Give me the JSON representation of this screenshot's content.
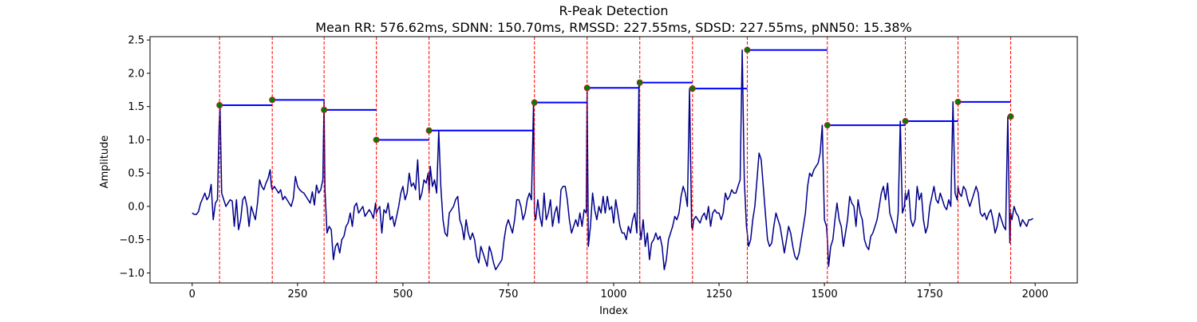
{
  "chart_data": {
    "type": "line",
    "title": "R-Peak Detection",
    "subtitle": "Mean RR: 576.62ms, SDNN: 150.70ms, RMSSD: 227.55ms, SDSD: 227.55ms, pNN50: 15.38%",
    "xlabel": "Index",
    "ylabel": "Amplitude",
    "xlim": [
      -100,
      2100
    ],
    "ylim": [
      -1.15,
      2.55
    ],
    "xticks": [
      0,
      250,
      500,
      750,
      1000,
      1250,
      1500,
      1750,
      2000
    ],
    "xtick_labels": [
      "0",
      "250",
      "500",
      "750",
      "1000",
      "1250",
      "1500",
      "1750",
      "2000"
    ],
    "yticks": [
      -1.0,
      -0.5,
      0.0,
      0.5,
      1.0,
      1.5,
      2.0,
      2.5
    ],
    "ytick_labels": [
      "−1.0",
      "−0.5",
      "0.0",
      "0.5",
      "1.0",
      "1.5",
      "2.0",
      "2.5"
    ],
    "grid": false,
    "colors": {
      "signal": "#00008b",
      "peak_lines": "#ff0000",
      "rr_segments": "#0000ff",
      "peak_markers": "#008000",
      "peak_marker_edge": "#b22222"
    },
    "signal_x": [
      0,
      5,
      10,
      15,
      20,
      25,
      30,
      35,
      40,
      45,
      50,
      55,
      60,
      64,
      66,
      70,
      75,
      80,
      85,
      90,
      95,
      100,
      105,
      110,
      115,
      120,
      125,
      130,
      135,
      140,
      145,
      150,
      155,
      160,
      165,
      170,
      175,
      180,
      185,
      188,
      190,
      195,
      200,
      205,
      210,
      215,
      220,
      225,
      230,
      235,
      240,
      245,
      250,
      255,
      260,
      265,
      270,
      275,
      280,
      285,
      290,
      295,
      300,
      305,
      310,
      313,
      315,
      320,
      325,
      330,
      335,
      340,
      345,
      350,
      355,
      360,
      365,
      370,
      375,
      380,
      385,
      390,
      395,
      400,
      405,
      410,
      415,
      420,
      425,
      430,
      435,
      437,
      440,
      445,
      450,
      455,
      460,
      465,
      470,
      475,
      480,
      485,
      490,
      495,
      500,
      505,
      510,
      515,
      520,
      525,
      530,
      535,
      540,
      545,
      550,
      555,
      560,
      562,
      565,
      570,
      575,
      580,
      585,
      590,
      595,
      600,
      605,
      610,
      615,
      620,
      625,
      630,
      635,
      640,
      645,
      650,
      655,
      660,
      665,
      670,
      675,
      680,
      685,
      690,
      695,
      700,
      705,
      710,
      715,
      720,
      725,
      730,
      735,
      740,
      745,
      750,
      755,
      760,
      765,
      770,
      775,
      780,
      785,
      790,
      795,
      800,
      805,
      810,
      812,
      815,
      820,
      825,
      830,
      835,
      840,
      845,
      850,
      855,
      860,
      865,
      870,
      875,
      880,
      885,
      890,
      895,
      900,
      905,
      910,
      915,
      920,
      925,
      930,
      935,
      937,
      940,
      945,
      950,
      955,
      960,
      965,
      970,
      975,
      980,
      985,
      990,
      995,
      1000,
      1005,
      1010,
      1015,
      1020,
      1025,
      1030,
      1035,
      1040,
      1045,
      1050,
      1055,
      1060,
      1062,
      1065,
      1070,
      1075,
      1080,
      1085,
      1090,
      1095,
      1100,
      1105,
      1110,
      1115,
      1120,
      1125,
      1130,
      1135,
      1140,
      1145,
      1150,
      1155,
      1160,
      1165,
      1170,
      1175,
      1180,
      1185,
      1187,
      1190,
      1195,
      1200,
      1205,
      1210,
      1215,
      1220,
      1225,
      1230,
      1235,
      1240,
      1245,
      1250,
      1255,
      1260,
      1265,
      1270,
      1275,
      1280,
      1285,
      1290,
      1295,
      1300,
      1305,
      1310,
      1315,
      1317,
      1320,
      1325,
      1330,
      1335,
      1340,
      1345,
      1350,
      1355,
      1360,
      1365,
      1370,
      1375,
      1380,
      1385,
      1390,
      1395,
      1400,
      1405,
      1410,
      1415,
      1420,
      1425,
      1430,
      1435,
      1440,
      1445,
      1450,
      1455,
      1460,
      1465,
      1470,
      1475,
      1480,
      1485,
      1490,
      1495,
      1500,
      1505,
      1507,
      1510,
      1515,
      1520,
      1525,
      1530,
      1535,
      1540,
      1545,
      1550,
      1555,
      1560,
      1565,
      1570,
      1575,
      1580,
      1585,
      1590,
      1595,
      1600,
      1605,
      1610,
      1615,
      1620,
      1625,
      1630,
      1635,
      1640,
      1645,
      1650,
      1655,
      1660,
      1665,
      1670,
      1675,
      1680,
      1685,
      1690,
      1692,
      1695,
      1700,
      1705,
      1710,
      1715,
      1720,
      1725,
      1730,
      1735,
      1740,
      1745,
      1750,
      1755,
      1760,
      1765,
      1770,
      1775,
      1780,
      1785,
      1790,
      1795,
      1800,
      1805,
      1810,
      1815,
      1817,
      1820,
      1825,
      1830,
      1835,
      1840,
      1845,
      1850,
      1855,
      1860,
      1865,
      1870,
      1875,
      1880,
      1885,
      1890,
      1895,
      1900,
      1905,
      1910,
      1915,
      1920,
      1925,
      1930,
      1935,
      1940,
      1942,
      1945,
      1950,
      1955,
      1960,
      1965,
      1970,
      1975,
      1980,
      1985,
      1990,
      1995,
      2000
    ],
    "signal_y": [
      -0.1,
      -0.12,
      -0.12,
      -0.08,
      0.05,
      0.12,
      0.2,
      0.1,
      0.15,
      0.33,
      -0.2,
      0.05,
      0.1,
      1.2,
      1.52,
      0.2,
      0.1,
      0.0,
      0.05,
      0.1,
      0.08,
      -0.3,
      0.1,
      -0.35,
      -0.2,
      0.1,
      0.15,
      0.0,
      -0.3,
      0.0,
      -0.1,
      -0.2,
      0.05,
      0.4,
      0.3,
      0.25,
      0.35,
      0.42,
      0.55,
      0.3,
      0.25,
      0.3,
      0.25,
      0.2,
      0.25,
      0.1,
      0.15,
      0.1,
      0.05,
      0.0,
      0.12,
      0.45,
      0.3,
      0.25,
      0.22,
      0.2,
      0.15,
      0.1,
      0.05,
      0.22,
      0.02,
      0.32,
      0.2,
      0.25,
      0.4,
      1.6,
      0.25,
      -0.4,
      -0.3,
      -0.35,
      -0.8,
      -0.6,
      -0.55,
      -0.7,
      -0.5,
      -0.45,
      -0.3,
      -0.25,
      -0.1,
      -0.3,
      0.0,
      0.05,
      -0.1,
      -0.05,
      0.0,
      -0.15,
      -0.1,
      -0.05,
      -0.1,
      -0.18,
      0.05,
      -0.1,
      -0.05,
      0.0,
      -0.4,
      -0.05,
      -0.1,
      0.05,
      -0.2,
      -0.15,
      -0.3,
      -0.15,
      0.0,
      0.2,
      0.3,
      0.1,
      0.2,
      0.5,
      0.3,
      0.35,
      0.25,
      0.7,
      0.1,
      0.2,
      0.4,
      0.35,
      0.5,
      0.2,
      0.6,
      0.3,
      0.4,
      0.2,
      1.14,
      0.3,
      -0.2,
      -0.4,
      -0.45,
      -0.1,
      -0.05,
      0.0,
      0.1,
      0.15,
      -0.2,
      -0.3,
      -0.5,
      -0.2,
      -0.4,
      -0.5,
      -0.4,
      -0.5,
      -0.75,
      -0.85,
      -0.6,
      -0.7,
      -0.8,
      -0.9,
      -0.6,
      -0.7,
      -0.85,
      -0.95,
      -0.9,
      -0.85,
      -0.8,
      -0.5,
      -0.3,
      -0.2,
      -0.3,
      -0.4,
      -0.2,
      0.1,
      0.1,
      0.0,
      -0.2,
      -0.1,
      0.1,
      0.2,
      0.1,
      1.56,
      -0.1,
      -0.2,
      0.1,
      -0.15,
      -0.3,
      0.2,
      -0.2,
      -0.1,
      0.1,
      -0.3,
      -0.1,
      0.0,
      -0.25,
      0.25,
      0.3,
      0.3,
      0.1,
      -0.2,
      -0.4,
      -0.3,
      -0.2,
      -0.3,
      -0.1,
      -0.3,
      -0.05,
      -0.1,
      1.78,
      -0.6,
      -0.3,
      0.2,
      -0.05,
      -0.2,
      0.0,
      -0.1,
      0.15,
      -0.1,
      0.15,
      -0.05,
      0.0,
      -0.25,
      0.1,
      -0.1,
      -0.3,
      -0.4,
      -0.4,
      -0.5,
      -0.3,
      -0.4,
      -0.2,
      -0.1,
      -0.4,
      1.86,
      -0.3,
      -0.5,
      -0.2,
      -0.6,
      -0.4,
      -0.8,
      -0.55,
      -0.5,
      -0.4,
      -0.5,
      -0.45,
      -0.6,
      -0.95,
      -0.8,
      -0.5,
      -0.4,
      -0.3,
      -0.15,
      -0.2,
      -0.1,
      0.15,
      0.3,
      0.2,
      0.0,
      1.77,
      -0.3,
      -0.35,
      -0.2,
      -0.15,
      -0.2,
      -0.25,
      -0.15,
      -0.1,
      -0.2,
      0.0,
      -0.3,
      -0.1,
      -0.05,
      -0.1,
      -0.1,
      -0.2,
      -0.1,
      0.2,
      0.1,
      0.15,
      0.25,
      0.2,
      0.2,
      0.3,
      0.4,
      2.35,
      0.4,
      -0.3,
      -0.4,
      -0.6,
      -0.5,
      -0.2,
      0.0,
      0.4,
      0.8,
      0.7,
      0.3,
      -0.1,
      -0.5,
      -0.6,
      -0.55,
      -0.3,
      -0.1,
      -0.2,
      -0.3,
      -0.5,
      -0.7,
      -0.5,
      -0.3,
      -0.4,
      -0.6,
      -0.75,
      -0.8,
      -0.7,
      -0.5,
      -0.3,
      -0.1,
      0.3,
      0.5,
      0.45,
      0.55,
      0.6,
      0.65,
      0.8,
      1.22,
      -0.2,
      -0.3,
      -0.5,
      -0.9,
      -0.6,
      -0.5,
      -0.2,
      0.05,
      -0.2,
      -0.3,
      -0.6,
      -0.4,
      -0.2,
      0.15,
      0.05,
      0.0,
      -0.3,
      0.1,
      -0.1,
      -0.2,
      -0.5,
      -0.6,
      -0.65,
      -0.45,
      -0.4,
      -0.3,
      -0.2,
      0.0,
      0.2,
      0.3,
      0.1,
      0.35,
      -0.1,
      -0.2,
      -0.3,
      -0.4,
      -0.1,
      1.28,
      -0.1,
      0.0,
      0.2,
      0.1,
      0.25,
      -0.2,
      -0.3,
      -0.2,
      0.3,
      0.1,
      0.2,
      -0.2,
      -0.4,
      -0.3,
      0.0,
      0.15,
      0.3,
      0.1,
      0.05,
      0.2,
      0.1,
      0.0,
      -0.05,
      0.1,
      0.0,
      1.57,
      0.2,
      0.1,
      0.3,
      0.2,
      0.15,
      0.3,
      0.25,
      0.1,
      0.0,
      0.1,
      0.2,
      0.3,
      0.2,
      -0.1,
      -0.15,
      -0.1,
      -0.2,
      -0.1,
      -0.05,
      -0.2,
      -0.4,
      -0.3,
      -0.1,
      -0.2,
      -0.3,
      -0.35,
      1.35,
      -0.55,
      -0.1,
      -0.2,
      0.0,
      -0.1,
      -0.15,
      -0.3,
      -0.2,
      -0.25,
      -0.3,
      -0.2,
      -0.2,
      -0.18
    ],
    "r_peaks_x": [
      65,
      190,
      313,
      437,
      562,
      812,
      937,
      1062,
      1187,
      1317,
      1507,
      1692,
      1817,
      1942
    ],
    "r_peaks_y": [
      1.52,
      1.6,
      1.45,
      1.0,
      1.14,
      1.56,
      1.78,
      1.86,
      1.77,
      2.35,
      1.22,
      1.28,
      1.57,
      1.35
    ]
  }
}
